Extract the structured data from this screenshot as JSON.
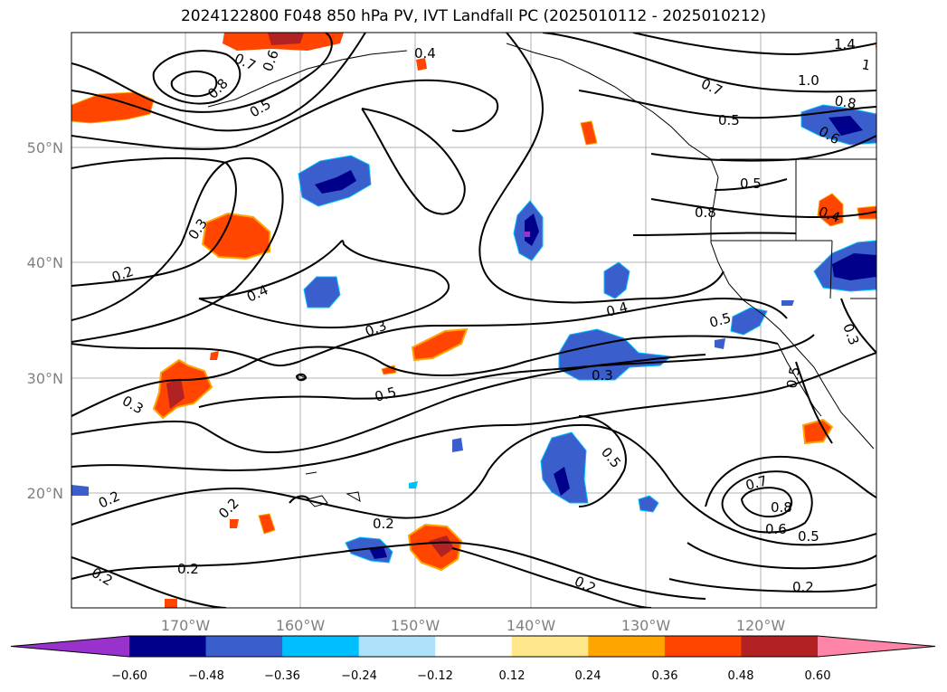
{
  "title": "2024122800 F048 850 hPa PV, IVT Landfall PC (2025010112 - 2025010212)",
  "map": {
    "lon_labels": [
      "170°W",
      "160°W",
      "150°W",
      "140°W",
      "130°W",
      "120°W"
    ],
    "lat_labels": [
      "50°N",
      "40°N",
      "30°N",
      "20°N"
    ],
    "contour_labels": [
      "0.7",
      "0.6",
      "0.8",
      "0.5",
      "0.4",
      "1.4",
      "1",
      "0.7",
      "1.0",
      "0.5",
      "0.8",
      "0.6",
      "0.5",
      "0.3",
      "0.8",
      "0.4",
      "0.2",
      "0.4",
      "0.3",
      "0.4",
      "0.5",
      "0.3",
      "0.5",
      "0.3",
      "0.5",
      "0.5",
      "0.3",
      "0.2",
      "0.7",
      "0.8",
      "0.6",
      "0.5",
      "0.2",
      "0.2",
      "0.2",
      "0.2",
      "0.2",
      "0.2"
    ]
  },
  "colorbar": {
    "ticks": [
      "−0.60",
      "−0.48",
      "−0.36",
      "−0.24",
      "−0.12",
      "0.12",
      "0.24",
      "0.36",
      "0.48",
      "0.60"
    ],
    "colors": [
      "#9932cc",
      "#00008b",
      "#3a5fcd",
      "#00bfff",
      "#aee2fa",
      "#ffffff",
      "#ffe88c",
      "#ffa500",
      "#ff4500",
      "#b22222",
      "#ff85a8"
    ]
  }
}
